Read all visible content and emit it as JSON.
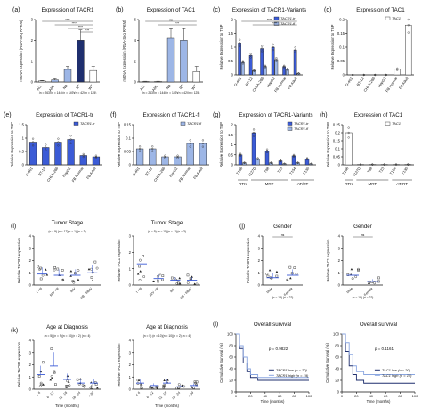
{
  "colors": {
    "navy": "#1f2f6e",
    "light_blue": "#9db6e6",
    "blue": "#3b5bd6",
    "grey_bar": "#d0d0d0",
    "point": "#333333"
  },
  "chart_data": [
    {
      "id": "a",
      "type": "bar",
      "letter": "(a)",
      "title": "Expression of TACR1",
      "ylabel": "mRNA Expression (RNA-Seq RPKM)",
      "ylim": [
        0,
        3
      ],
      "yticks": [
        0,
        1,
        2,
        3
      ],
      "categories": [
        "ALL",
        "AML",
        "NB",
        "RT",
        "WT"
      ],
      "values": [
        0.05,
        0.1,
        0.6,
        2.0,
        0.55
      ],
      "errors": [
        0.02,
        0.05,
        0.15,
        0.5,
        0.2
      ],
      "bar_colors": [
        "#ffffff",
        "#9db6e6",
        "#9db6e6",
        "#1f2f6e",
        "#ffffff"
      ],
      "note": "(n = 263)(n = 144)(n = 149)(n = 42)(n = 125)",
      "sig": [
        "****",
        "****",
        "****",
        "****"
      ]
    },
    {
      "id": "b",
      "type": "bar",
      "letter": "(b)",
      "title": "Expression of TAC1",
      "ylabel": "mRNA Expression (RNA-Seq RPKM)",
      "ylim": [
        0,
        6
      ],
      "yticks": [
        0,
        2,
        4,
        6
      ],
      "categories": [
        "ALL",
        "AML",
        "NB",
        "RT",
        "WT"
      ],
      "values": [
        0.05,
        0.05,
        4.2,
        4.0,
        1.0
      ],
      "errors": [
        0.02,
        0.02,
        1.0,
        1.2,
        0.5
      ],
      "bar_colors": [
        "#ffffff",
        "#ffffff",
        "#9db6e6",
        "#9db6e6",
        "#ffffff"
      ],
      "note": "(n = 263)(n = 144)(n = 149)(n = 42)(n = 125)",
      "sig": [
        "ns",
        "***"
      ]
    },
    {
      "id": "c",
      "type": "bar",
      "letter": "(c)",
      "title": "Expression of TACR1-Variants",
      "ylabel": "Relative Expression to TBP",
      "ylim": [
        0,
        2.0
      ],
      "yticks": [
        0,
        0.5,
        1.0,
        1.5,
        2.0
      ],
      "categories": [
        "G-401",
        "BT-12",
        "CHLA-266",
        "HepG2",
        "FB Normal",
        "FB Adult"
      ],
      "series": [
        {
          "name": "TACR1-tr",
          "values": [
            1.15,
            0.7,
            0.95,
            1.0,
            0.3,
            0.9
          ]
        },
        {
          "name": "TACR1-fl",
          "values": [
            0.45,
            0.15,
            0.3,
            0.55,
            0.2,
            0.05
          ]
        }
      ],
      "series_colors": [
        "#3b5bd6",
        "#9db6e6"
      ],
      "sig": [
        "****",
        "****"
      ]
    },
    {
      "id": "d",
      "type": "bar",
      "letter": "(d)",
      "title": "Expression of TAC1",
      "ylabel": "Relative Expression to TBP",
      "ylim": [
        0,
        0.2
      ],
      "yticks": [
        0,
        0.05,
        0.1,
        0.15,
        0.2
      ],
      "categories": [
        "G-401",
        "BT-12",
        "CHLA-266",
        "HepG2",
        "FB Normal",
        "FB Adult"
      ],
      "values": [
        0.0,
        0.0,
        0.0,
        0.0,
        0.02,
        0.18
      ],
      "series": [
        {
          "name": "TAC1"
        }
      ],
      "bar_colors": [
        "#ffffff",
        "#ffffff",
        "#ffffff",
        "#ffffff",
        "#ffffff",
        "#ffffff"
      ]
    },
    {
      "id": "e",
      "type": "bar",
      "letter": "(e)",
      "title": "Expression of TACR1-tr",
      "ylabel": "Relative Expression to TBP",
      "ylim": [
        0,
        1.5
      ],
      "yticks": [
        0,
        0.5,
        1.0,
        1.5
      ],
      "categories": [
        "G-401",
        "BT-12",
        "CHLA-266",
        "HepG2",
        "FB Normal",
        "FB Adult"
      ],
      "values": [
        0.85,
        0.65,
        0.85,
        0.95,
        0.35,
        0.3
      ],
      "series": [
        {
          "name": "TACR1-tr"
        }
      ],
      "bar_colors": [
        "#3b5bd6",
        "#3b5bd6",
        "#3b5bd6",
        "#3b5bd6",
        "#3b5bd6",
        "#3b5bd6"
      ]
    },
    {
      "id": "f",
      "type": "bar",
      "letter": "(f)",
      "title": "Expression of TACR1-fl",
      "ylabel": "Relative Expression to TBP",
      "ylim": [
        0,
        0.15
      ],
      "yticks": [
        0,
        0.05,
        0.1,
        0.15
      ],
      "categories": [
        "G-401",
        "BT-12",
        "CHLA-266",
        "HepG2",
        "FB Normal",
        "FB Adult"
      ],
      "values": [
        0.06,
        0.06,
        0.03,
        0.03,
        0.08,
        0.08
      ],
      "series": [
        {
          "name": "TACR1-fl"
        }
      ],
      "bar_colors": [
        "#9db6e6",
        "#9db6e6",
        "#9db6e6",
        "#9db6e6",
        "#9db6e6",
        "#9db6e6"
      ]
    },
    {
      "id": "g",
      "type": "bar",
      "letter": "(g)",
      "title": "Expression of TACR1-Variants",
      "ylabel": "Relative Expression to TBP",
      "ylim": [
        0,
        2.0
      ],
      "yticks": [
        0,
        0.5,
        1.0,
        1.5,
        2.0
      ],
      "categories": [
        "T196",
        "T127D",
        "T98",
        "T23",
        "T154",
        "T130"
      ],
      "groups": [
        "RTK",
        "MRT",
        "AT/RT"
      ],
      "series": [
        {
          "name": "TACR1-tr",
          "values": [
            0.5,
            1.6,
            0.7,
            0.2,
            0.45,
            0.3
          ]
        },
        {
          "name": "TACR1-fl",
          "values": [
            0.1,
            0.3,
            0.1,
            0.05,
            0.1,
            0.05
          ]
        }
      ],
      "series_colors": [
        "#3b5bd6",
        "#9db6e6"
      ]
    },
    {
      "id": "h",
      "type": "bar",
      "letter": "(h)",
      "title": "Expression of TAC1",
      "ylabel": "Relative Expression to TBP",
      "ylim": [
        0,
        0.25
      ],
      "yticks": [
        0,
        0.05,
        0.1,
        0.15,
        0.2,
        0.25
      ],
      "categories": [
        "T196",
        "T127D",
        "T98",
        "T23",
        "T154",
        "T130"
      ],
      "groups": [
        "RTK",
        "MRT",
        "AT/RT"
      ],
      "values": [
        0.2,
        0.002,
        0.002,
        0.002,
        0.002,
        0.002
      ],
      "series": [
        {
          "name": "TAC1"
        }
      ],
      "bar_colors": [
        "#ffffff",
        "#ffffff",
        "#ffffff",
        "#ffffff",
        "#ffffff",
        "#ffffff"
      ]
    },
    {
      "id": "i1",
      "type": "scatter",
      "letter": "(i)",
      "title": "Tumor Stage",
      "subtitle": "(n = 9) (n = 17)(n = 1) (n = 3)",
      "ylabel": "Relative TACR1 expression",
      "ylim": [
        0,
        4
      ],
      "yticks": [
        0,
        1,
        2,
        3,
        4
      ],
      "categories": [
        "I - III",
        "III/V - III",
        "III/V",
        "IIIB - IIIB/V"
      ],
      "means": [
        0.9,
        0.8,
        0.8,
        1.0
      ]
    },
    {
      "id": "i2",
      "type": "scatter",
      "title": "Tumor Stage",
      "subtitle": "(n = 9) (n = 15)(n = 11)(n = 3)",
      "ylabel": "Relative TAC1 expression",
      "ylim": [
        0,
        3
      ],
      "yticks": [
        0,
        1,
        2,
        3
      ],
      "categories": [
        "I - III",
        "III/V - III",
        "III/V",
        "IIIB - IIIB/V"
      ],
      "means": [
        1.3,
        0.4,
        0.3,
        0.3
      ]
    },
    {
      "id": "j1",
      "type": "scatter",
      "letter": "(j)",
      "title": "Gender",
      "ylabel": "Relative TACR1 expression",
      "ylim": [
        0,
        4
      ],
      "yticks": [
        0,
        1,
        2,
        3,
        4
      ],
      "categories": [
        "Male",
        "Female"
      ],
      "means": [
        0.6,
        0.8
      ],
      "note": "(n = 18) (n = 22)",
      "sig": [
        "ns"
      ]
    },
    {
      "id": "j2",
      "type": "scatter",
      "title": "Gender",
      "ylabel": "Relative TAC1 expression",
      "ylim": [
        0,
        4
      ],
      "yticks": [
        0,
        1,
        2,
        3,
        4
      ],
      "categories": [
        "Male",
        "Female"
      ],
      "means": [
        0.8,
        0.3
      ],
      "note": "(n = 18) (n = 22)",
      "sig": [
        "ns"
      ]
    },
    {
      "id": "k1",
      "type": "scatter",
      "letter": "(k)",
      "title": "Age at Diagnosis",
      "subtitle": "(n = 5) (n = 9)(n = 10)(n = 2) (n = 4)",
      "ylabel": "Relative TACR1 expression",
      "xlabel": "Time (months)",
      "ylim": [
        0,
        4
      ],
      "yticks": [
        0,
        1,
        2,
        3,
        4
      ],
      "categories": [
        "< 6",
        "6 - 12",
        "12 - 18",
        "18 - 24",
        "> 30"
      ],
      "means": [
        1.2,
        1.9,
        0.8,
        0.5,
        0.5
      ]
    },
    {
      "id": "k2",
      "type": "scatter",
      "title": "Age at Diagnosis",
      "subtitle": "(n = 5) (n = 10)(n = 10)(n = 2) (n = 4)",
      "ylabel": "Relative TAC1 expression",
      "xlabel": "Time (months)",
      "ylim": [
        0,
        4
      ],
      "yticks": [
        0,
        1,
        2,
        3,
        4
      ],
      "categories": [
        "< 6",
        "6 - 12",
        "12 - 18",
        "18 - 24",
        "> 30"
      ],
      "means": [
        0.5,
        0.3,
        0.5,
        0.2,
        0.3
      ]
    },
    {
      "id": "l1",
      "type": "line",
      "letter": "(l)",
      "title": "Overall survival",
      "pvalue": "p = 0.9822",
      "xlabel": "Time (months)",
      "ylabel": "Cumulative Survival (%)",
      "xlim": [
        0,
        100
      ],
      "ylim": [
        0,
        100
      ],
      "xticks": [
        0,
        20,
        40,
        60,
        80,
        100
      ],
      "yticks": [
        0,
        20,
        40,
        60,
        80,
        100
      ],
      "series": [
        {
          "name": "TACR1 low (n = 20)",
          "x": [
            0,
            5,
            10,
            15,
            20,
            30,
            50,
            100
          ],
          "y": [
            100,
            75,
            50,
            35,
            25,
            20,
            20,
            20
          ]
        },
        {
          "name": "TACR1 high (n = 19)",
          "x": [
            0,
            5,
            10,
            15,
            20,
            30,
            50,
            100
          ],
          "y": [
            100,
            80,
            60,
            40,
            30,
            25,
            25,
            25
          ]
        }
      ]
    },
    {
      "id": "l2",
      "type": "line",
      "title": "Overall survival",
      "pvalue": "p = 0.1161",
      "xlabel": "Time (months)",
      "ylabel": "Cumulative Survival (%)",
      "xlim": [
        0,
        100
      ],
      "ylim": [
        0,
        100
      ],
      "xticks": [
        0,
        20,
        40,
        60,
        80,
        100
      ],
      "yticks": [
        0,
        20,
        40,
        60,
        80,
        100
      ],
      "series": [
        {
          "name": "TAC1 low (n = 20)",
          "x": [
            0,
            5,
            10,
            15,
            20,
            30,
            50,
            100
          ],
          "y": [
            100,
            70,
            45,
            30,
            20,
            15,
            15,
            15
          ]
        },
        {
          "name": "TAC1 high (n = 19)",
          "x": [
            0,
            5,
            10,
            15,
            20,
            30,
            50,
            100
          ],
          "y": [
            100,
            85,
            65,
            45,
            35,
            30,
            30,
            30
          ]
        }
      ]
    }
  ]
}
